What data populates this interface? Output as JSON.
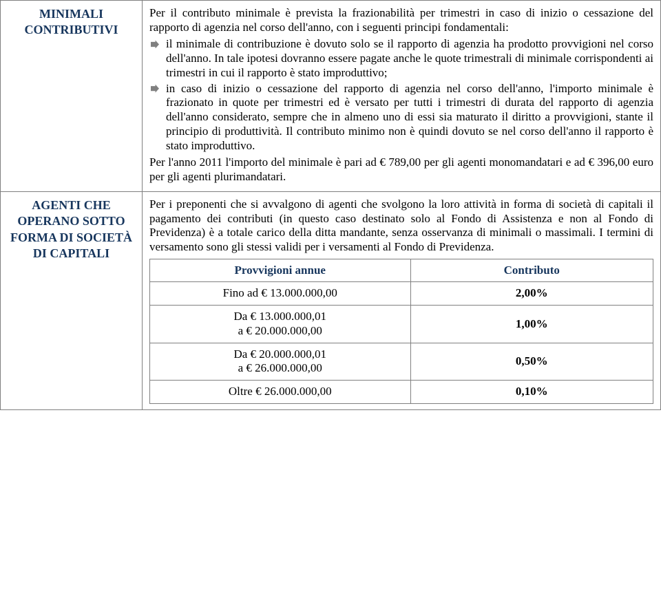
{
  "colors": {
    "heading": "#17365d",
    "border": "#7f7f7f",
    "arrow": "#808080",
    "text": "#000000",
    "background": "#ffffff"
  },
  "fonts": {
    "body_size_pt": 13,
    "heading_weight": "bold"
  },
  "rows": {
    "row1": {
      "label": "MINIMALI CONTRIBUTIVI",
      "intro": "Per il contributo minimale è prevista la frazionabilità per trimestri in caso di inizio o cessazione del rapporto di agenzia nel corso dell'anno, con i seguenti principi fondamentali:",
      "bullets": [
        "il minimale di contribuzione è dovuto solo se il rapporto di agenzia ha prodotto provvigioni nel corso dell'anno. In tale ipotesi dovranno essere pagate anche le quote trimestrali di minimale corrispondenti ai trimestri in cui il rapporto è stato improduttivo;",
        "in caso di inizio o cessazione del rapporto di agenzia nel corso dell'anno, l'importo minimale è frazionato in quote per trimestri ed è versato per tutti i trimestri di durata del rapporto di agenzia dell'anno considerato, sempre che in almeno uno di essi sia maturato il diritto a provvigioni, stante il principio di produttività. Il contributo minimo non è quindi dovuto se nel corso dell'anno il rapporto è stato improduttivo."
      ],
      "closing": "Per l'anno 2011 l'importo del minimale è pari ad € 789,00 per gli agenti monomandatari e ad € 396,00 euro per gli agenti plurimandatari."
    },
    "row2": {
      "label": "AGENTI CHE OPERANO SOTTO FORMA DI SOCIETÀ DI CAPITALI",
      "intro": "Per i preponenti che si avvalgono di agenti che svolgono la loro attività in forma di società di capitali il pagamento dei contributi (in questo caso destinato solo al Fondo di Assistenza e non al Fondo di Previdenza) è a totale carico della ditta mandante, senza osservanza di minimali o massimali. I termini di versamento sono gli stessi validi per i versamenti al Fondo di Previdenza.",
      "table": {
        "headers": [
          "Provvigioni annue",
          "Contributo"
        ],
        "rows": [
          {
            "left": "Fino ad € 13.000.000,00",
            "right": "2,00%"
          },
          {
            "left": "Da € 13.000.000,01\na € 20.000.000,00",
            "right": "1,00%"
          },
          {
            "left": "Da € 20.000.000,01\na € 26.000.000,00",
            "right": "0,50%"
          },
          {
            "left": "Oltre € 26.000.000,00",
            "right": "0,10%"
          }
        ]
      }
    }
  }
}
